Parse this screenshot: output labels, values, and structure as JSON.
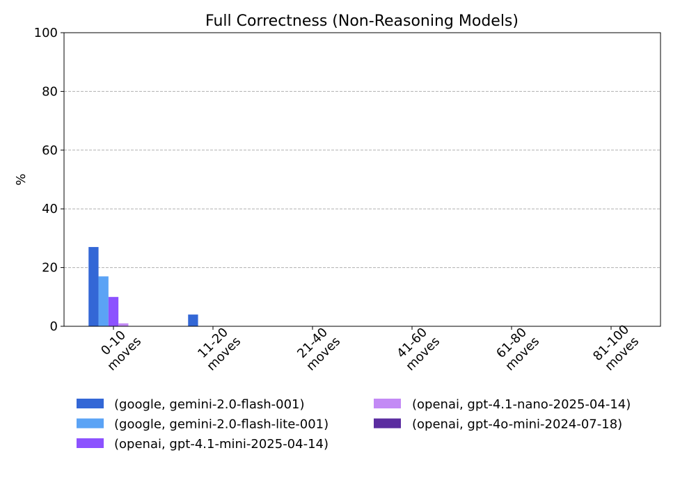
{
  "chart_data": {
    "type": "bar",
    "title": "Full Correctness (Non-Reasoning Models)",
    "xlabel": "",
    "ylabel": "%",
    "ylim": [
      0,
      100
    ],
    "yticks": [
      "0",
      "20",
      "40",
      "60",
      "80",
      "100"
    ],
    "grid": "y-dashed",
    "legend_position": "bottom",
    "categories": [
      "0-10\nmoves",
      "11-20\nmoves",
      "21-40\nmoves",
      "41-60\nmoves",
      "61-80\nmoves",
      "81-100\nmoves"
    ],
    "series": [
      {
        "name": "(google, gemini-2.0-flash-001)",
        "color": "#3367d6",
        "values": [
          27,
          4,
          0,
          0,
          0,
          0
        ]
      },
      {
        "name": "(google, gemini-2.0-flash-lite-001)",
        "color": "#5ba3f5",
        "values": [
          17,
          0,
          0,
          0,
          0,
          0
        ]
      },
      {
        "name": "(openai, gpt-4.1-mini-2025-04-14)",
        "color": "#8c52ff",
        "values": [
          10,
          0,
          0,
          0,
          0,
          0
        ]
      },
      {
        "name": "(openai, gpt-4.1-nano-2025-04-14)",
        "color": "#c38af5",
        "values": [
          1,
          0,
          0,
          0,
          0,
          0
        ]
      },
      {
        "name": "(openai, gpt-4o-mini-2024-07-18)",
        "color": "#5b2ca0",
        "values": [
          0,
          0,
          0,
          0,
          0,
          0
        ]
      }
    ]
  }
}
